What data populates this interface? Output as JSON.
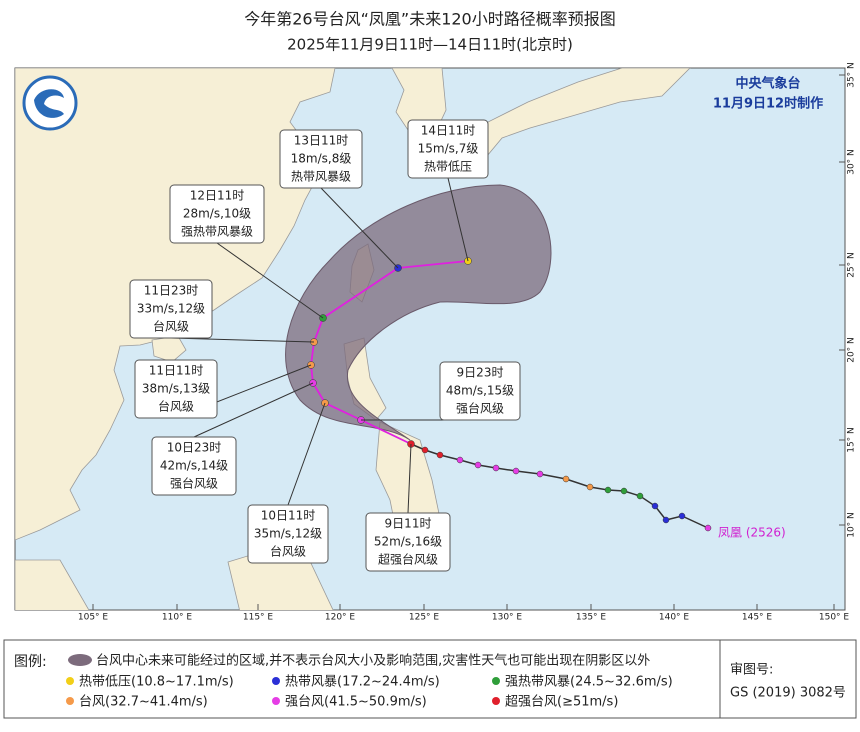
{
  "header": {
    "title": "今年第26号台风“凤凰”未来120小时路径概率预报图",
    "subtitle": "2025年11月9日11时—14日11时(北京时)"
  },
  "agency": {
    "name": "中央气象台",
    "issued": "11月9日12时制作"
  },
  "map": {
    "longitude_labels": [
      "105° E",
      "110° E",
      "115° E",
      "120° E",
      "125° E",
      "130° E",
      "135° E",
      "140° E",
      "145° E",
      "150° E"
    ],
    "latitude_labels": [
      "35° N",
      "30° N",
      "25° N",
      "20° N",
      "15° N",
      "10° N"
    ],
    "typhoon_label": "凤凰 (2526)",
    "callouts": [
      {
        "time": "14日11时",
        "wind": "15m/s,7级",
        "category": "热带低压"
      },
      {
        "time": "13日11时",
        "wind": "18m/s,8级",
        "category": "热带风暴级"
      },
      {
        "time": "12日11时",
        "wind": "28m/s,10级",
        "category": "强热带风暴级"
      },
      {
        "time": "11日23时",
        "wind": "33m/s,12级",
        "category": "台风级"
      },
      {
        "time": "11日11时",
        "wind": "38m/s,13级",
        "category": "台风级"
      },
      {
        "time": "10日23时",
        "wind": "42m/s,14级",
        "category": "强台风级"
      },
      {
        "time": "10日11时",
        "wind": "35m/s,12级",
        "category": "台风级"
      },
      {
        "time": "9日11时",
        "wind": "52m/s,16级",
        "category": "超强台风级"
      },
      {
        "time": "9日23时",
        "wind": "48m/s,15级",
        "category": "强台风级"
      }
    ]
  },
  "legend": {
    "heading": "图例:",
    "area": "台风中心未来可能经过的区域,并不表示台风大小及影响范围,灾害性天气也可能出现在阴影区以外",
    "items": [
      "热带低压(10.8~17.1m/s)",
      "热带风暴(17.2~24.4m/s)",
      "强热带风暴(24.5~32.6m/s)",
      "台风(32.7~41.4m/s)",
      "强台风(41.5~50.9m/s)",
      "超强台风(≥51m/s)"
    ]
  },
  "approval": {
    "heading": "审图号:",
    "number": "GS (2019) 3082号"
  }
}
